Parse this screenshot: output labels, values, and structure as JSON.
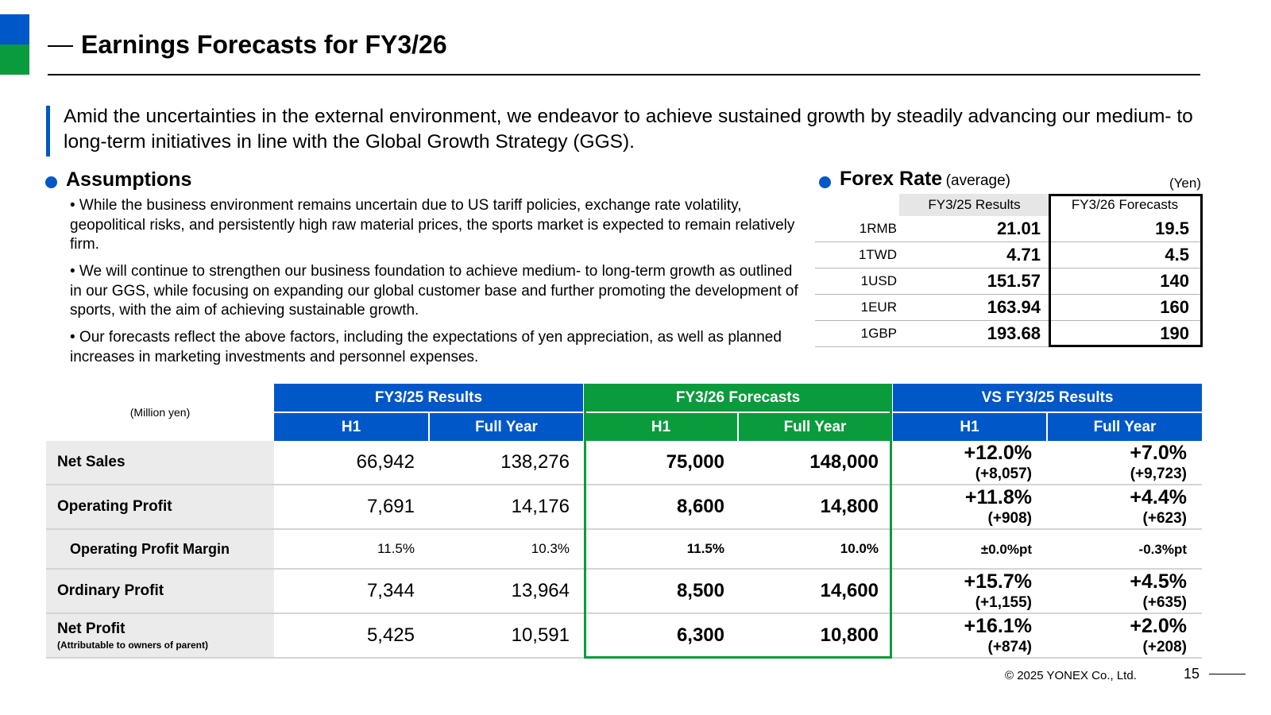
{
  "title": "Earnings Forecasts for FY3/26",
  "lead_text": "Amid the uncertainties in the external environment, we endeavor to achieve sustained growth by steadily advancing our medium- to long-term initiatives in line with the Global Growth Strategy (GGS).",
  "assumptions": {
    "heading": "Assumptions",
    "points": [
      "• While the business environment remains uncertain due to US tariff policies, exchange rate volatility, geopolitical risks, and persistently high raw material prices, the sports market is expected to remain relatively firm.",
      "• We will continue to strengthen our business foundation to achieve medium- to long-term growth as outlined in our GGS, while focusing on expanding our global customer base and further promoting the development of sports, with the aim of achieving sustainable growth.",
      "• Our forecasts reflect the above factors, including the expectations of yen appreciation, as well as planned increases in marketing investments and personnel expenses."
    ]
  },
  "forex": {
    "heading": "Forex Rate",
    "heading_note": "(average)",
    "unit": "(Yen)",
    "col_results": "FY3/25 Results",
    "col_forecasts": "FY3/26 Forecasts",
    "rows": [
      {
        "currency": "1RMB",
        "results": "21.01",
        "forecast": "19.5"
      },
      {
        "currency": "1TWD",
        "results": "4.71",
        "forecast": "4.5"
      },
      {
        "currency": "1USD",
        "results": "151.57",
        "forecast": "140"
      },
      {
        "currency": "1EUR",
        "results": "163.94",
        "forecast": "160"
      },
      {
        "currency": "1GBP",
        "results": "193.68",
        "forecast": "190"
      }
    ]
  },
  "table": {
    "unit": "(Million yen)",
    "group_results": "FY3/25 Results",
    "group_forecasts": "FY3/26 Forecasts",
    "group_vs": "VS FY3/25 Results",
    "sub_h1": "H1",
    "sub_full": "Full Year",
    "rows": [
      {
        "label": "Net Sales",
        "sublabel": "",
        "r_h1": "66,942",
        "r_fy": "138,276",
        "f_h1": "75,000",
        "f_fy": "148,000",
        "vs_h1_pct": "+12.0%",
        "vs_h1_abs": "(+8,057)",
        "vs_fy_pct": "+7.0%",
        "vs_fy_abs": "(+9,723)"
      },
      {
        "label": "Operating Profit",
        "sublabel": "",
        "r_h1": "7,691",
        "r_fy": "14,176",
        "f_h1": "8,600",
        "f_fy": "14,800",
        "vs_h1_pct": "+11.8%",
        "vs_h1_abs": "(+908)",
        "vs_fy_pct": "+4.4%",
        "vs_fy_abs": "(+623)"
      },
      {
        "label": "Operating Profit Margin",
        "sublabel": "",
        "r_h1": "11.5%",
        "r_fy": "10.3%",
        "f_h1": "11.5%",
        "f_fy": "10.0%",
        "vs_h1_pct": "±0.0%pt",
        "vs_h1_abs": "",
        "vs_fy_pct": "-0.3%pt",
        "vs_fy_abs": ""
      },
      {
        "label": "Ordinary Profit",
        "sublabel": "",
        "r_h1": "7,344",
        "r_fy": "13,964",
        "f_h1": "8,500",
        "f_fy": "14,600",
        "vs_h1_pct": "+15.7%",
        "vs_h1_abs": "(+1,155)",
        "vs_fy_pct": "+4.5%",
        "vs_fy_abs": "(+635)"
      },
      {
        "label": "Net Profit",
        "sublabel": "(Attributable to owners of parent)",
        "r_h1": "5,425",
        "r_fy": "10,591",
        "f_h1": "6,300",
        "f_fy": "10,800",
        "vs_h1_pct": "+16.1%",
        "vs_h1_abs": "(+874)",
        "vs_fy_pct": "+2.0%",
        "vs_fy_abs": "(+208)"
      }
    ]
  },
  "footer": {
    "copyright": "© 2025 YONEX Co., Ltd.",
    "page_number": "15"
  },
  "colors": {
    "brand_blue": "#0057c8",
    "brand_green": "#0a9b3c"
  }
}
